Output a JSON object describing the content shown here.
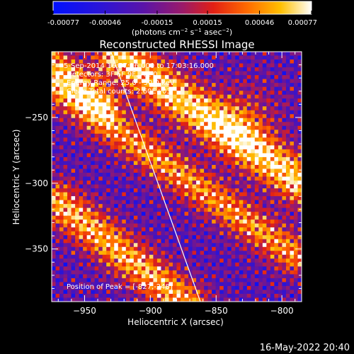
{
  "chart_data": {
    "type": "heatmap",
    "title": "Reconstructed RHESSI Image",
    "xlabel": "Heliocentric X (arcsec)",
    "ylabel": "Heliocentric Y (arcsec)",
    "xlim": [
      -975,
      -785
    ],
    "ylim": [
      -390,
      -200
    ],
    "x_ticks": [
      -950,
      -900,
      -850,
      -800
    ],
    "x_tick_labels": [
      "−950",
      "−900",
      "−850",
      "−800"
    ],
    "y_ticks": [
      -250,
      -300,
      -350
    ],
    "y_tick_labels": [
      "−250",
      "−300",
      "−350"
    ],
    "colorbar": {
      "min": -0.00077,
      "max": 0.00077,
      "tick_values": [
        -0.00077,
        -0.00046,
        -0.00015,
        0.00015,
        0.00046,
        0.00077
      ],
      "tick_labels": [
        "-0.00077",
        "-0.00046",
        "-0.00015",
        "0.00015",
        "0.00046",
        "0.00077"
      ],
      "units_prefix": "(photons cm",
      "units_exp1": "−2",
      "units_mid": " s",
      "units_exp2": "−1",
      "units_mid2": " asec",
      "units_exp3": "−2",
      "units_suffix": ")"
    },
    "annotations": [
      "5-Sep-2014 16:57:16.000 to 17:03:16.000",
      "Detectors: 3F 6F 9F, Att 0",
      "Energy Range: 25.0 - 50.0 keV",
      "Clean    Total counts: 2.60E+03"
    ],
    "peak_label": "Position of Peak = [-827,-248]",
    "peak": [
      -827,
      -248
    ],
    "limb_line": {
      "x": [
        -930,
        -862
      ],
      "y": [
        -200,
        -390
      ]
    },
    "ridges": [
      {
        "x": [
          -925,
          -785
        ],
        "y": [
          -203,
          -300
        ],
        "amplitude": 1.0,
        "width": 12
      },
      {
        "x": [
          -975,
          -790
        ],
        "y": [
          -225,
          -355
        ],
        "amplitude": 0.75,
        "width": 10
      },
      {
        "x": [
          -970,
          -872
        ],
        "y": [
          -315,
          -392
        ],
        "amplitude": 0.85,
        "width": 11
      },
      {
        "x": [
          -975,
          -935
        ],
        "y": [
          -205,
          -240
        ],
        "amplitude": 0.65,
        "width": 9
      }
    ],
    "grid": false
  },
  "footer": {
    "date": "16-May-2022 20:40"
  }
}
